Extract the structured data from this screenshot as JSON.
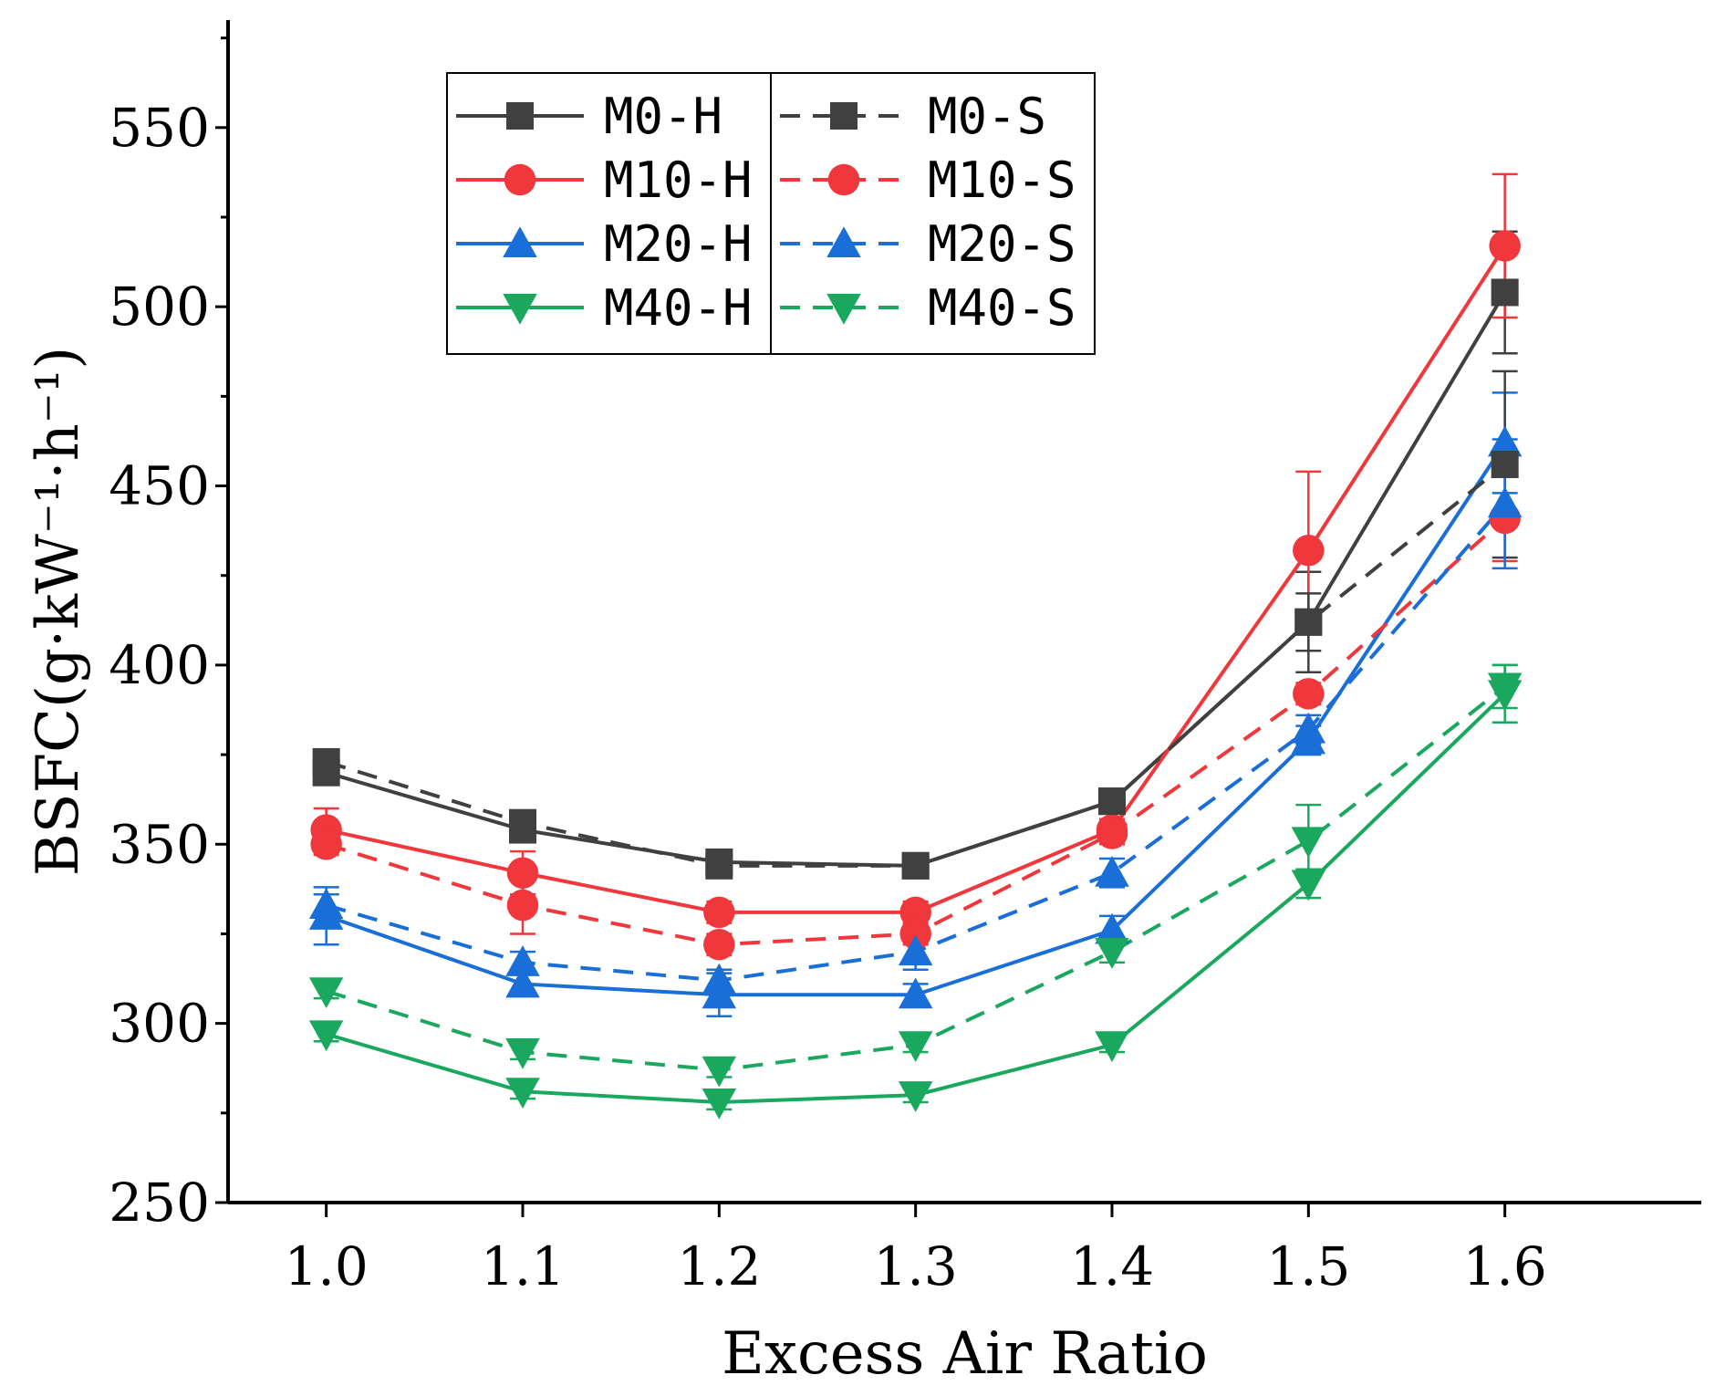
{
  "chart_data": {
    "type": "line",
    "xlabel": "Excess Air Ratio",
    "ylabel": "BSFC(g·kW⁻¹·h⁻¹)",
    "ylim": [
      250,
      580
    ],
    "y_ticks": [
      250,
      300,
      350,
      400,
      450,
      500,
      550
    ],
    "x": [
      1.0,
      1.1,
      1.2,
      1.3,
      1.4,
      1.5,
      1.6
    ],
    "x_tick_labels": [
      "1.0",
      "1.1",
      "1.2",
      "1.3",
      "1.4",
      "1.5",
      "1.6"
    ],
    "grid": false,
    "legend_position": "top-left",
    "error_bars": true,
    "series": [
      {
        "name": "M0-H",
        "color": "#404040",
        "marker": "square",
        "line": "solid",
        "values": [
          370,
          354,
          345,
          344,
          362,
          412,
          504
        ],
        "errors": [
          3,
          3,
          2,
          2,
          3,
          14,
          17
        ]
      },
      {
        "name": "M10-H",
        "color": "#f0373c",
        "marker": "circle",
        "line": "solid",
        "values": [
          354,
          342,
          331,
          331,
          354,
          432,
          517
        ],
        "errors": [
          6,
          6,
          3,
          3,
          3,
          22,
          20
        ]
      },
      {
        "name": "M20-H",
        "color": "#1a6ed8",
        "marker": "triangle-up",
        "line": "solid",
        "values": [
          330,
          311,
          308,
          308,
          326,
          379,
          462
        ],
        "errors": [
          8,
          3,
          6,
          3,
          4,
          4,
          14
        ]
      },
      {
        "name": "M40-H",
        "color": "#1aa85e",
        "marker": "triangle-down",
        "line": "solid",
        "values": [
          297,
          281,
          278,
          280,
          294,
          339,
          392
        ],
        "errors": [
          2,
          2,
          2,
          2,
          2,
          4,
          8
        ]
      },
      {
        "name": "M0-S",
        "color": "#404040",
        "marker": "square",
        "line": "dashed",
        "values": [
          373,
          356,
          344,
          344,
          362,
          412,
          456
        ],
        "errors": [
          2,
          2,
          2,
          2,
          3,
          8,
          26
        ]
      },
      {
        "name": "M10-S",
        "color": "#f0373c",
        "marker": "circle",
        "line": "dashed",
        "values": [
          350,
          333,
          322,
          325,
          353,
          392,
          441
        ],
        "errors": [
          3,
          8,
          3,
          3,
          3,
          3,
          12
        ]
      },
      {
        "name": "M20-S",
        "color": "#1a6ed8",
        "marker": "triangle-up",
        "line": "dashed",
        "values": [
          333,
          317,
          312,
          320,
          342,
          382,
          445
        ],
        "errors": [
          3,
          3,
          3,
          5,
          4,
          4,
          18
        ]
      },
      {
        "name": "M40-S",
        "color": "#1aa85e",
        "marker": "triangle-down",
        "line": "dashed",
        "values": [
          309,
          292,
          287,
          294,
          320,
          351,
          394
        ],
        "errors": [
          2,
          2,
          2,
          2,
          3,
          10,
          6
        ]
      }
    ]
  }
}
